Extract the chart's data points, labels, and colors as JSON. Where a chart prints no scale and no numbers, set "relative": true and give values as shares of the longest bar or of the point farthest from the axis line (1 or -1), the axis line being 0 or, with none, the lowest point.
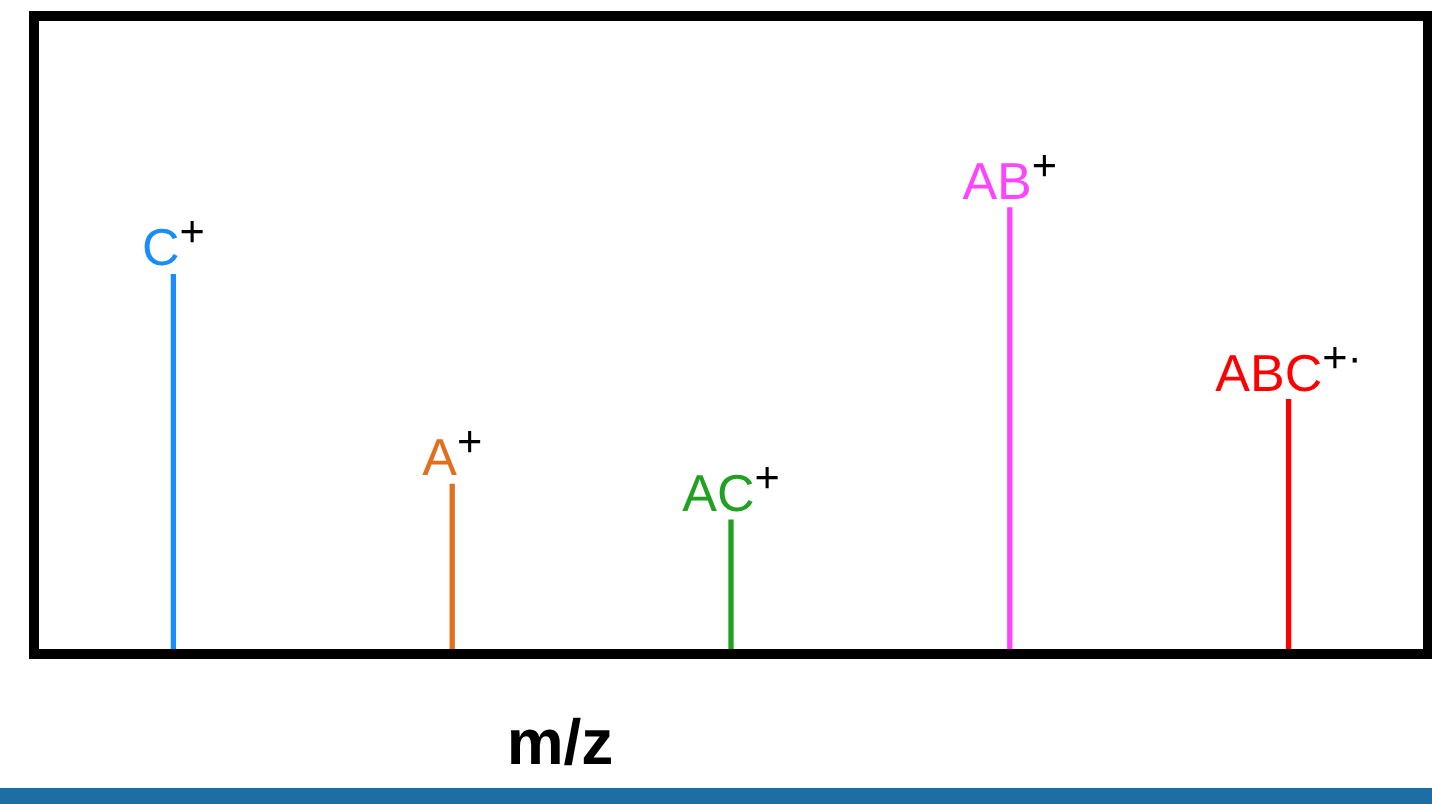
{
  "chart_data": {
    "type": "bar",
    "relative": true,
    "xlabel": "m/z",
    "categories": [
      "C$^{+}$",
      "A$^{+}$",
      "AC$^{+}$",
      "AB$^{+}$",
      "ABC$^{+·}$"
    ],
    "values": [
      0.85,
      0.38,
      0.3,
      1,
      0.57
    ],
    "colors": [
      "#1a8cff",
      "#e07020",
      "#22a022",
      "#ff44ff",
      "#ff0000"
    ],
    "grid": false,
    "legend": false
  }
}
